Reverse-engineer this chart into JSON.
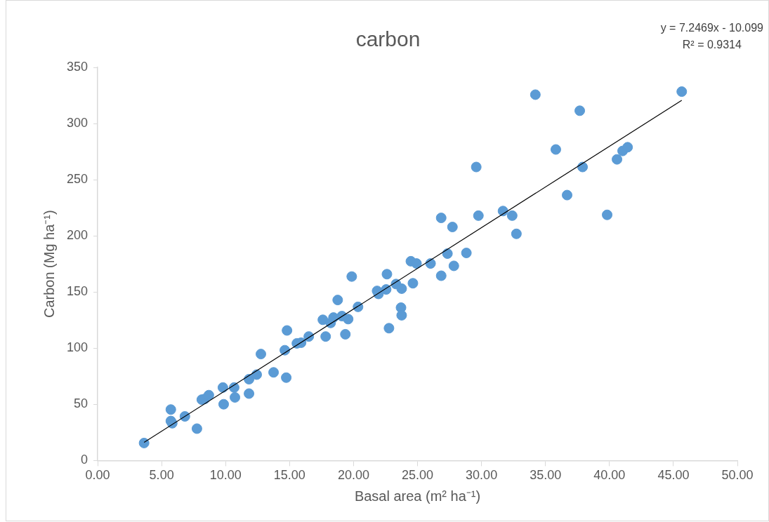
{
  "chart_data": {
    "type": "scatter",
    "title": "carbon",
    "xlabel": "Basal area (m² ha⁻¹)",
    "ylabel": "Carbon (Mg ha⁻¹)",
    "annotations": [
      "y = 7.2469x - 10.099",
      "R² = 0.9314"
    ],
    "xlim": [
      0,
      50
    ],
    "ylim": [
      0,
      350
    ],
    "xticks": [
      {
        "value": 0,
        "label": "0.00"
      },
      {
        "value": 5,
        "label": "5.00"
      },
      {
        "value": 10,
        "label": "10.00"
      },
      {
        "value": 15,
        "label": "15.00"
      },
      {
        "value": 20,
        "label": "20.00"
      },
      {
        "value": 25,
        "label": "25.00"
      },
      {
        "value": 30,
        "label": "30.00"
      },
      {
        "value": 35,
        "label": "35.00"
      },
      {
        "value": 40,
        "label": "40.00"
      },
      {
        "value": 45,
        "label": "45.00"
      },
      {
        "value": 50,
        "label": "50.00"
      }
    ],
    "yticks": [
      0,
      50,
      100,
      150,
      200,
      250,
      300,
      350
    ],
    "grid": false,
    "legend": false,
    "marker": "circle",
    "series": [
      {
        "color": "#5b9bd5",
        "x": [
          3.63,
          5.72,
          5.72,
          5.83,
          6.82,
          7.76,
          8.14,
          8.36,
          8.69,
          9.79,
          9.85,
          10.67,
          10.73,
          11.83,
          11.83,
          12.43,
          12.76,
          13.75,
          14.63,
          14.74,
          14.8,
          15.57,
          15.9,
          16.5,
          17.6,
          17.82,
          18.21,
          18.43,
          18.76,
          19.09,
          19.36,
          19.58,
          19.86,
          20.35,
          21.84,
          21.95,
          22.55,
          22.61,
          22.77,
          23.32,
          23.71,
          23.76,
          23.76,
          24.48,
          24.64,
          24.92,
          26.02,
          26.85,
          26.85,
          27.34,
          27.73,
          27.84,
          28.82,
          29.59,
          29.76,
          31.68,
          32.4,
          32.73,
          34.21,
          35.81,
          36.69,
          37.68,
          37.9,
          39.82,
          40.59,
          41.03,
          41.42,
          45.65
        ],
        "values": [
          15.6,
          45.4,
          35.2,
          33.2,
          39.3,
          28.4,
          54.2,
          54.8,
          58.2,
          65,
          50.1,
          65,
          56.2,
          59.6,
          72.4,
          76.5,
          94.8,
          78.5,
          98.2,
          73.8,
          115.8,
          104.3,
          104.9,
          110.4,
          125.3,
          110.4,
          122.5,
          127.3,
          142.9,
          128.6,
          112.4,
          125.9,
          163.8,
          136.8,
          151,
          148.3,
          152.3,
          165.9,
          117.8,
          157.1,
          136.1,
          129.3,
          153,
          177.4,
          157.8,
          175.4,
          175.4,
          164.5,
          216,
          184.2,
          207.9,
          173.3,
          184.8,
          261.3,
          218,
          222.1,
          218,
          201.8,
          325.7,
          276.9,
          236.3,
          311.4,
          261.3,
          218.7,
          268.1,
          275.6,
          278.9,
          328.4
        ]
      },
      {
        "type": "line",
        "color": "#000000",
        "marker": "none",
        "line_style": "solid",
        "x": [
          3.63,
          45.65
        ],
        "values": [
          16.2,
          320.7
        ]
      }
    ]
  }
}
